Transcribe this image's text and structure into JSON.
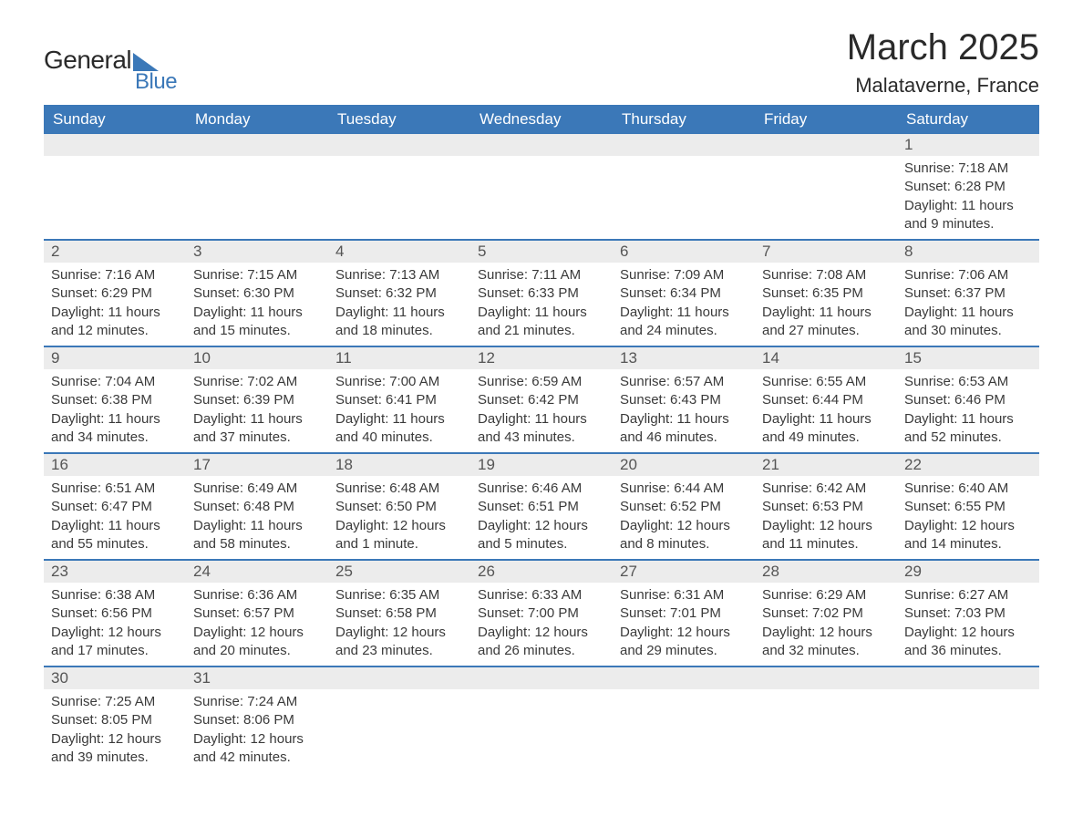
{
  "logo": {
    "general": "General",
    "blue": "Blue"
  },
  "title": "March 2025",
  "location": "Malataverne, France",
  "colors": {
    "header_bg": "#3b78b8",
    "header_text": "#ffffff",
    "daynum_bg": "#ececec",
    "daynum_text": "#555555",
    "body_text": "#3a3a3a",
    "border": "#3b78b8",
    "page_bg": "#ffffff",
    "logo_dark": "#2a2a2a",
    "logo_blue": "#3b78b8"
  },
  "fonts": {
    "title_size_pt": 30,
    "location_size_pt": 16,
    "header_size_pt": 13,
    "daynum_size_pt": 13,
    "body_size_pt": 11
  },
  "weekdays": [
    "Sunday",
    "Monday",
    "Tuesday",
    "Wednesday",
    "Thursday",
    "Friday",
    "Saturday"
  ],
  "weeks": [
    [
      {
        "n": "",
        "lines": []
      },
      {
        "n": "",
        "lines": []
      },
      {
        "n": "",
        "lines": []
      },
      {
        "n": "",
        "lines": []
      },
      {
        "n": "",
        "lines": []
      },
      {
        "n": "",
        "lines": []
      },
      {
        "n": "1",
        "lines": [
          "Sunrise: 7:18 AM",
          "Sunset: 6:28 PM",
          "Daylight: 11 hours and 9 minutes."
        ]
      }
    ],
    [
      {
        "n": "2",
        "lines": [
          "Sunrise: 7:16 AM",
          "Sunset: 6:29 PM",
          "Daylight: 11 hours and 12 minutes."
        ]
      },
      {
        "n": "3",
        "lines": [
          "Sunrise: 7:15 AM",
          "Sunset: 6:30 PM",
          "Daylight: 11 hours and 15 minutes."
        ]
      },
      {
        "n": "4",
        "lines": [
          "Sunrise: 7:13 AM",
          "Sunset: 6:32 PM",
          "Daylight: 11 hours and 18 minutes."
        ]
      },
      {
        "n": "5",
        "lines": [
          "Sunrise: 7:11 AM",
          "Sunset: 6:33 PM",
          "Daylight: 11 hours and 21 minutes."
        ]
      },
      {
        "n": "6",
        "lines": [
          "Sunrise: 7:09 AM",
          "Sunset: 6:34 PM",
          "Daylight: 11 hours and 24 minutes."
        ]
      },
      {
        "n": "7",
        "lines": [
          "Sunrise: 7:08 AM",
          "Sunset: 6:35 PM",
          "Daylight: 11 hours and 27 minutes."
        ]
      },
      {
        "n": "8",
        "lines": [
          "Sunrise: 7:06 AM",
          "Sunset: 6:37 PM",
          "Daylight: 11 hours and 30 minutes."
        ]
      }
    ],
    [
      {
        "n": "9",
        "lines": [
          "Sunrise: 7:04 AM",
          "Sunset: 6:38 PM",
          "Daylight: 11 hours and 34 minutes."
        ]
      },
      {
        "n": "10",
        "lines": [
          "Sunrise: 7:02 AM",
          "Sunset: 6:39 PM",
          "Daylight: 11 hours and 37 minutes."
        ]
      },
      {
        "n": "11",
        "lines": [
          "Sunrise: 7:00 AM",
          "Sunset: 6:41 PM",
          "Daylight: 11 hours and 40 minutes."
        ]
      },
      {
        "n": "12",
        "lines": [
          "Sunrise: 6:59 AM",
          "Sunset: 6:42 PM",
          "Daylight: 11 hours and 43 minutes."
        ]
      },
      {
        "n": "13",
        "lines": [
          "Sunrise: 6:57 AM",
          "Sunset: 6:43 PM",
          "Daylight: 11 hours and 46 minutes."
        ]
      },
      {
        "n": "14",
        "lines": [
          "Sunrise: 6:55 AM",
          "Sunset: 6:44 PM",
          "Daylight: 11 hours and 49 minutes."
        ]
      },
      {
        "n": "15",
        "lines": [
          "Sunrise: 6:53 AM",
          "Sunset: 6:46 PM",
          "Daylight: 11 hours and 52 minutes."
        ]
      }
    ],
    [
      {
        "n": "16",
        "lines": [
          "Sunrise: 6:51 AM",
          "Sunset: 6:47 PM",
          "Daylight: 11 hours and 55 minutes."
        ]
      },
      {
        "n": "17",
        "lines": [
          "Sunrise: 6:49 AM",
          "Sunset: 6:48 PM",
          "Daylight: 11 hours and 58 minutes."
        ]
      },
      {
        "n": "18",
        "lines": [
          "Sunrise: 6:48 AM",
          "Sunset: 6:50 PM",
          "Daylight: 12 hours and 1 minute."
        ]
      },
      {
        "n": "19",
        "lines": [
          "Sunrise: 6:46 AM",
          "Sunset: 6:51 PM",
          "Daylight: 12 hours and 5 minutes."
        ]
      },
      {
        "n": "20",
        "lines": [
          "Sunrise: 6:44 AM",
          "Sunset: 6:52 PM",
          "Daylight: 12 hours and 8 minutes."
        ]
      },
      {
        "n": "21",
        "lines": [
          "Sunrise: 6:42 AM",
          "Sunset: 6:53 PM",
          "Daylight: 12 hours and 11 minutes."
        ]
      },
      {
        "n": "22",
        "lines": [
          "Sunrise: 6:40 AM",
          "Sunset: 6:55 PM",
          "Daylight: 12 hours and 14 minutes."
        ]
      }
    ],
    [
      {
        "n": "23",
        "lines": [
          "Sunrise: 6:38 AM",
          "Sunset: 6:56 PM",
          "Daylight: 12 hours and 17 minutes."
        ]
      },
      {
        "n": "24",
        "lines": [
          "Sunrise: 6:36 AM",
          "Sunset: 6:57 PM",
          "Daylight: 12 hours and 20 minutes."
        ]
      },
      {
        "n": "25",
        "lines": [
          "Sunrise: 6:35 AM",
          "Sunset: 6:58 PM",
          "Daylight: 12 hours and 23 minutes."
        ]
      },
      {
        "n": "26",
        "lines": [
          "Sunrise: 6:33 AM",
          "Sunset: 7:00 PM",
          "Daylight: 12 hours and 26 minutes."
        ]
      },
      {
        "n": "27",
        "lines": [
          "Sunrise: 6:31 AM",
          "Sunset: 7:01 PM",
          "Daylight: 12 hours and 29 minutes."
        ]
      },
      {
        "n": "28",
        "lines": [
          "Sunrise: 6:29 AM",
          "Sunset: 7:02 PM",
          "Daylight: 12 hours and 32 minutes."
        ]
      },
      {
        "n": "29",
        "lines": [
          "Sunrise: 6:27 AM",
          "Sunset: 7:03 PM",
          "Daylight: 12 hours and 36 minutes."
        ]
      }
    ],
    [
      {
        "n": "30",
        "lines": [
          "Sunrise: 7:25 AM",
          "Sunset: 8:05 PM",
          "Daylight: 12 hours and 39 minutes."
        ]
      },
      {
        "n": "31",
        "lines": [
          "Sunrise: 7:24 AM",
          "Sunset: 8:06 PM",
          "Daylight: 12 hours and 42 minutes."
        ]
      },
      {
        "n": "",
        "lines": []
      },
      {
        "n": "",
        "lines": []
      },
      {
        "n": "",
        "lines": []
      },
      {
        "n": "",
        "lines": []
      },
      {
        "n": "",
        "lines": []
      }
    ]
  ]
}
